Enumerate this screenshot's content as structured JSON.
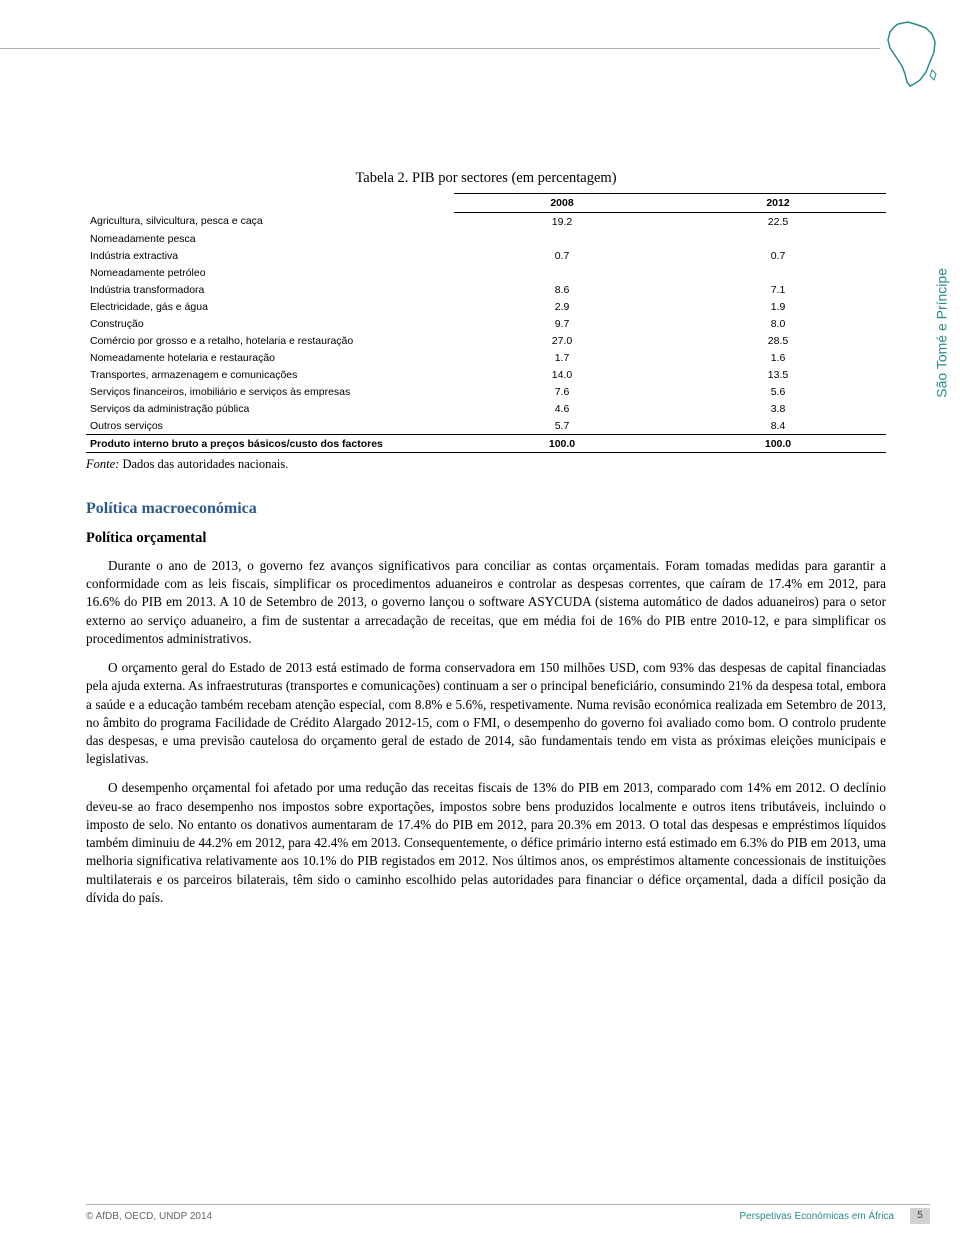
{
  "side_label": "São Tomé e Príncipe",
  "table": {
    "title": "Tabela 2. PIB por sectores (em percentagem)",
    "columns": [
      "",
      "2008",
      "2012"
    ],
    "rows": [
      {
        "label": "Agricultura, silvicultura, pesca e caça",
        "v1": "19.2",
        "v2": "22.5",
        "bold": false
      },
      {
        "label": "Nomeadamente pesca",
        "v1": "",
        "v2": "",
        "bold": false
      },
      {
        "label": "Indústria extractiva",
        "v1": "0.7",
        "v2": "0.7",
        "bold": false
      },
      {
        "label": "Nomeadamente petróleo",
        "v1": "",
        "v2": "",
        "bold": false
      },
      {
        "label": "Indústria transformadora",
        "v1": "8.6",
        "v2": "7.1",
        "bold": false
      },
      {
        "label": "Electricidade, gás e água",
        "v1": "2.9",
        "v2": "1.9",
        "bold": false
      },
      {
        "label": "Construção",
        "v1": "9.7",
        "v2": "8.0",
        "bold": false
      },
      {
        "label": "Comércio por grosso e a retalho, hotelaria e restauração",
        "v1": "27.0",
        "v2": "28.5",
        "bold": false
      },
      {
        "label": "Nomeadamente hotelaria e restauração",
        "v1": "1.7",
        "v2": "1.6",
        "bold": false
      },
      {
        "label": "Transportes, armazenagem e comunicações",
        "v1": "14.0",
        "v2": "13.5",
        "bold": false
      },
      {
        "label": "Serviços financeiros, imobiliário e serviços às empresas",
        "v1": "7.6",
        "v2": "5.6",
        "bold": false
      },
      {
        "label": "Serviços da administração pública",
        "v1": "4.6",
        "v2": "3.8",
        "bold": false
      },
      {
        "label": "Outros serviços",
        "v1": "5.7",
        "v2": "8.4",
        "bold": false
      },
      {
        "label": "Produto interno bruto a preços básicos/custo dos factores",
        "v1": "100.0",
        "v2": "100.0",
        "bold": true
      }
    ],
    "source_prefix": "Fonte:",
    "source_text": " Dados das autoridades nacionais."
  },
  "section_heading": "Política macroeconómica",
  "subsection_heading": "Política orçamental",
  "paragraphs": [
    "Durante o ano de 2013, o governo fez avanços significativos para conciliar as contas orçamentais. Foram tomadas medidas para garantir a conformidade com as leis fiscais, simplificar os procedimentos aduaneiros e controlar as despesas correntes, que caíram de 17.4% em 2012, para 16.6% do PIB em 2013. A 10 de Setembro de 2013, o governo lançou o software ASYCUDA (sistema automático de dados aduaneiros) para o setor externo ao serviço aduaneiro, a fim de sustentar a arrecadação de receitas, que em média foi de 16% do PIB entre 2010-12, e para simplificar os procedimentos administrativos.",
    "O orçamento geral do Estado de 2013 está estimado de forma conservadora em 150 milhões USD, com 93% das despesas de capital financiadas pela ajuda externa. As infraestruturas (transportes e comunicações) continuam a ser o principal beneficiário, consumindo 21% da despesa total, embora a saúde e a educação também recebam atenção especial, com 8.8% e 5.6%, respetivamente. Numa revisão económica realizada em Setembro de 2013, no âmbito do programa Facilidade de Crédito Alargado 2012-15, com o FMI, o desempenho do governo foi avaliado como bom. O controlo prudente das despesas, e uma previsão cautelosa do orçamento geral de estado de 2014, são fundamentais tendo em vista as próximas eleições municipais e legislativas.",
    "O desempenho orçamental foi afetado por uma redução das receitas fiscais de 13% do PIB em 2013, comparado com 14% em 2012. O declínio deveu-se ao fraco desempenho nos impostos sobre exportações, impostos sobre bens produzidos localmente e outros itens tributáveis, incluindo o imposto de selo. No entanto os donativos aumentaram de 17.4% do PIB em 2012, para 20.3% em 2013. O total das despesas e empréstimos líquidos também diminuiu de 44.2% em 2012, para 42.4% em 2013. Consequentemente, o défice primário interno está estimado em 6.3% do PIB em 2013, uma melhoria significativa relativamente aos 10.1% do PIB registados em 2012. Nos últimos anos, os empréstimos altamente concessionais de instituições multilaterais e os parceiros bilaterais, têm sido o caminho escolhido pelas autoridades para financiar o défice orçamental, dada a difícil posição da dívida do país."
  ],
  "footer": {
    "left": "© AfDB, OECD, UNDP 2014",
    "right": "Perspetivas Económicas em África",
    "page": "5"
  },
  "colors": {
    "accent_blue": "#2c5a8c",
    "accent_teal": "#2a8a8a",
    "rule_gray": "#b0b0b0",
    "footer_gray": "#666",
    "pagenum_bg": "#d0d0d0"
  }
}
